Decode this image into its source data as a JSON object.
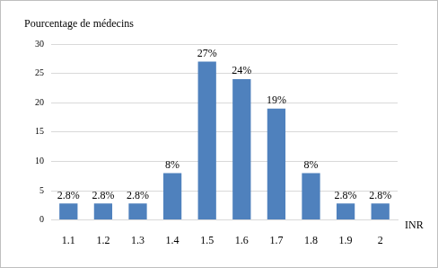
{
  "chart_data": {
    "type": "bar",
    "ylabel": "Pourcentage de médecins",
    "xlabel": "INR",
    "categories": [
      "1.1",
      "1.2",
      "1.3",
      "1.4",
      "1.5",
      "1.6",
      "1.7",
      "1.8",
      "1.9",
      "2"
    ],
    "values": [
      2.8,
      2.8,
      2.8,
      8,
      27,
      24,
      19,
      8,
      2.8,
      2.8
    ],
    "value_labels": [
      "2.8%",
      "2.8%",
      "2.8%",
      "8%",
      "27%",
      "24%",
      "19%",
      "8%",
      "2.8%",
      "2.8%"
    ],
    "data_labels": true,
    "color": "#4f81bd",
    "ylim": [
      0,
      30
    ],
    "yticks": [
      0,
      5,
      10,
      15,
      20,
      25,
      30
    ],
    "grid": true
  }
}
